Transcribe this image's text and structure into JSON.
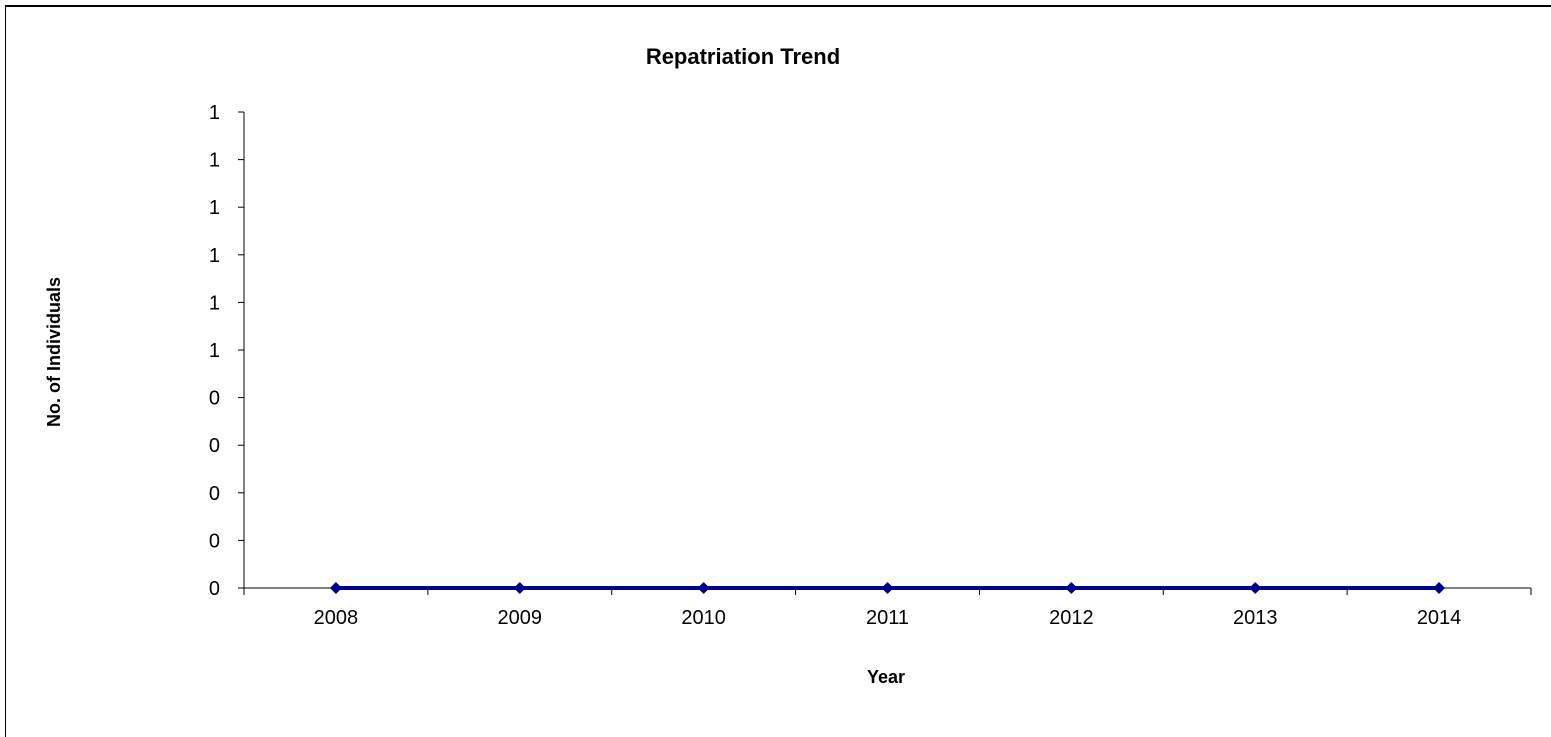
{
  "chart_data": {
    "type": "line",
    "title": "Repatriation Trend",
    "xlabel": "Year",
    "ylabel": "No. of Individuals",
    "categories": [
      "2008",
      "2009",
      "2010",
      "2011",
      "2012",
      "2013",
      "2014"
    ],
    "series": [
      {
        "values": [
          0,
          0,
          0,
          0,
          0,
          0,
          0
        ],
        "color": "#00008B"
      }
    ],
    "ylim": [
      0,
      1
    ],
    "y_tick_labels": [
      "0",
      "0",
      "0",
      "0",
      "0",
      "1",
      "1",
      "1",
      "1",
      "1",
      "1"
    ],
    "grid": false,
    "legend": "none",
    "marker": "diamond"
  }
}
